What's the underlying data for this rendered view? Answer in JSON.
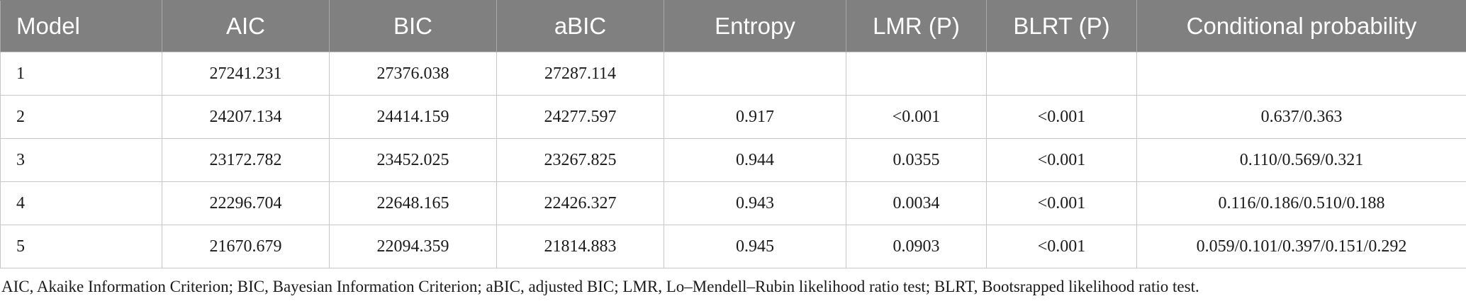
{
  "table": {
    "headers": [
      "Model",
      "AIC",
      "BIC",
      "aBIC",
      "Entropy",
      "LMR (P)",
      "BLRT (P)",
      "Conditional probability"
    ],
    "rows": [
      [
        "1",
        "27241.231",
        "27376.038",
        "27287.114",
        "",
        "",
        "",
        ""
      ],
      [
        "2",
        "24207.134",
        "24414.159",
        "24277.597",
        "0.917",
        "<0.001",
        "<0.001",
        "0.637/0.363"
      ],
      [
        "3",
        "23172.782",
        "23452.025",
        "23267.825",
        "0.944",
        "0.0355",
        "<0.001",
        "0.110/0.569/0.321"
      ],
      [
        "4",
        "22296.704",
        "22648.165",
        "22426.327",
        "0.943",
        "0.0034",
        "<0.001",
        "0.116/0.186/0.510/0.188"
      ],
      [
        "5",
        "21670.679",
        "22094.359",
        "21814.883",
        "0.945",
        "0.0903",
        "<0.001",
        "0.059/0.101/0.397/0.151/0.292"
      ]
    ]
  },
  "footnote": "AIC, Akaike Information Criterion; BIC, Bayesian Information Criterion; aBIC, adjusted BIC; LMR, Lo–Mendell–Rubin likelihood ratio test; BLRT, Bootsrapped likelihood ratio test.",
  "colors": {
    "header_bg": "#808080",
    "header_text": "#ffffff",
    "grid": "#c7c7c7"
  }
}
